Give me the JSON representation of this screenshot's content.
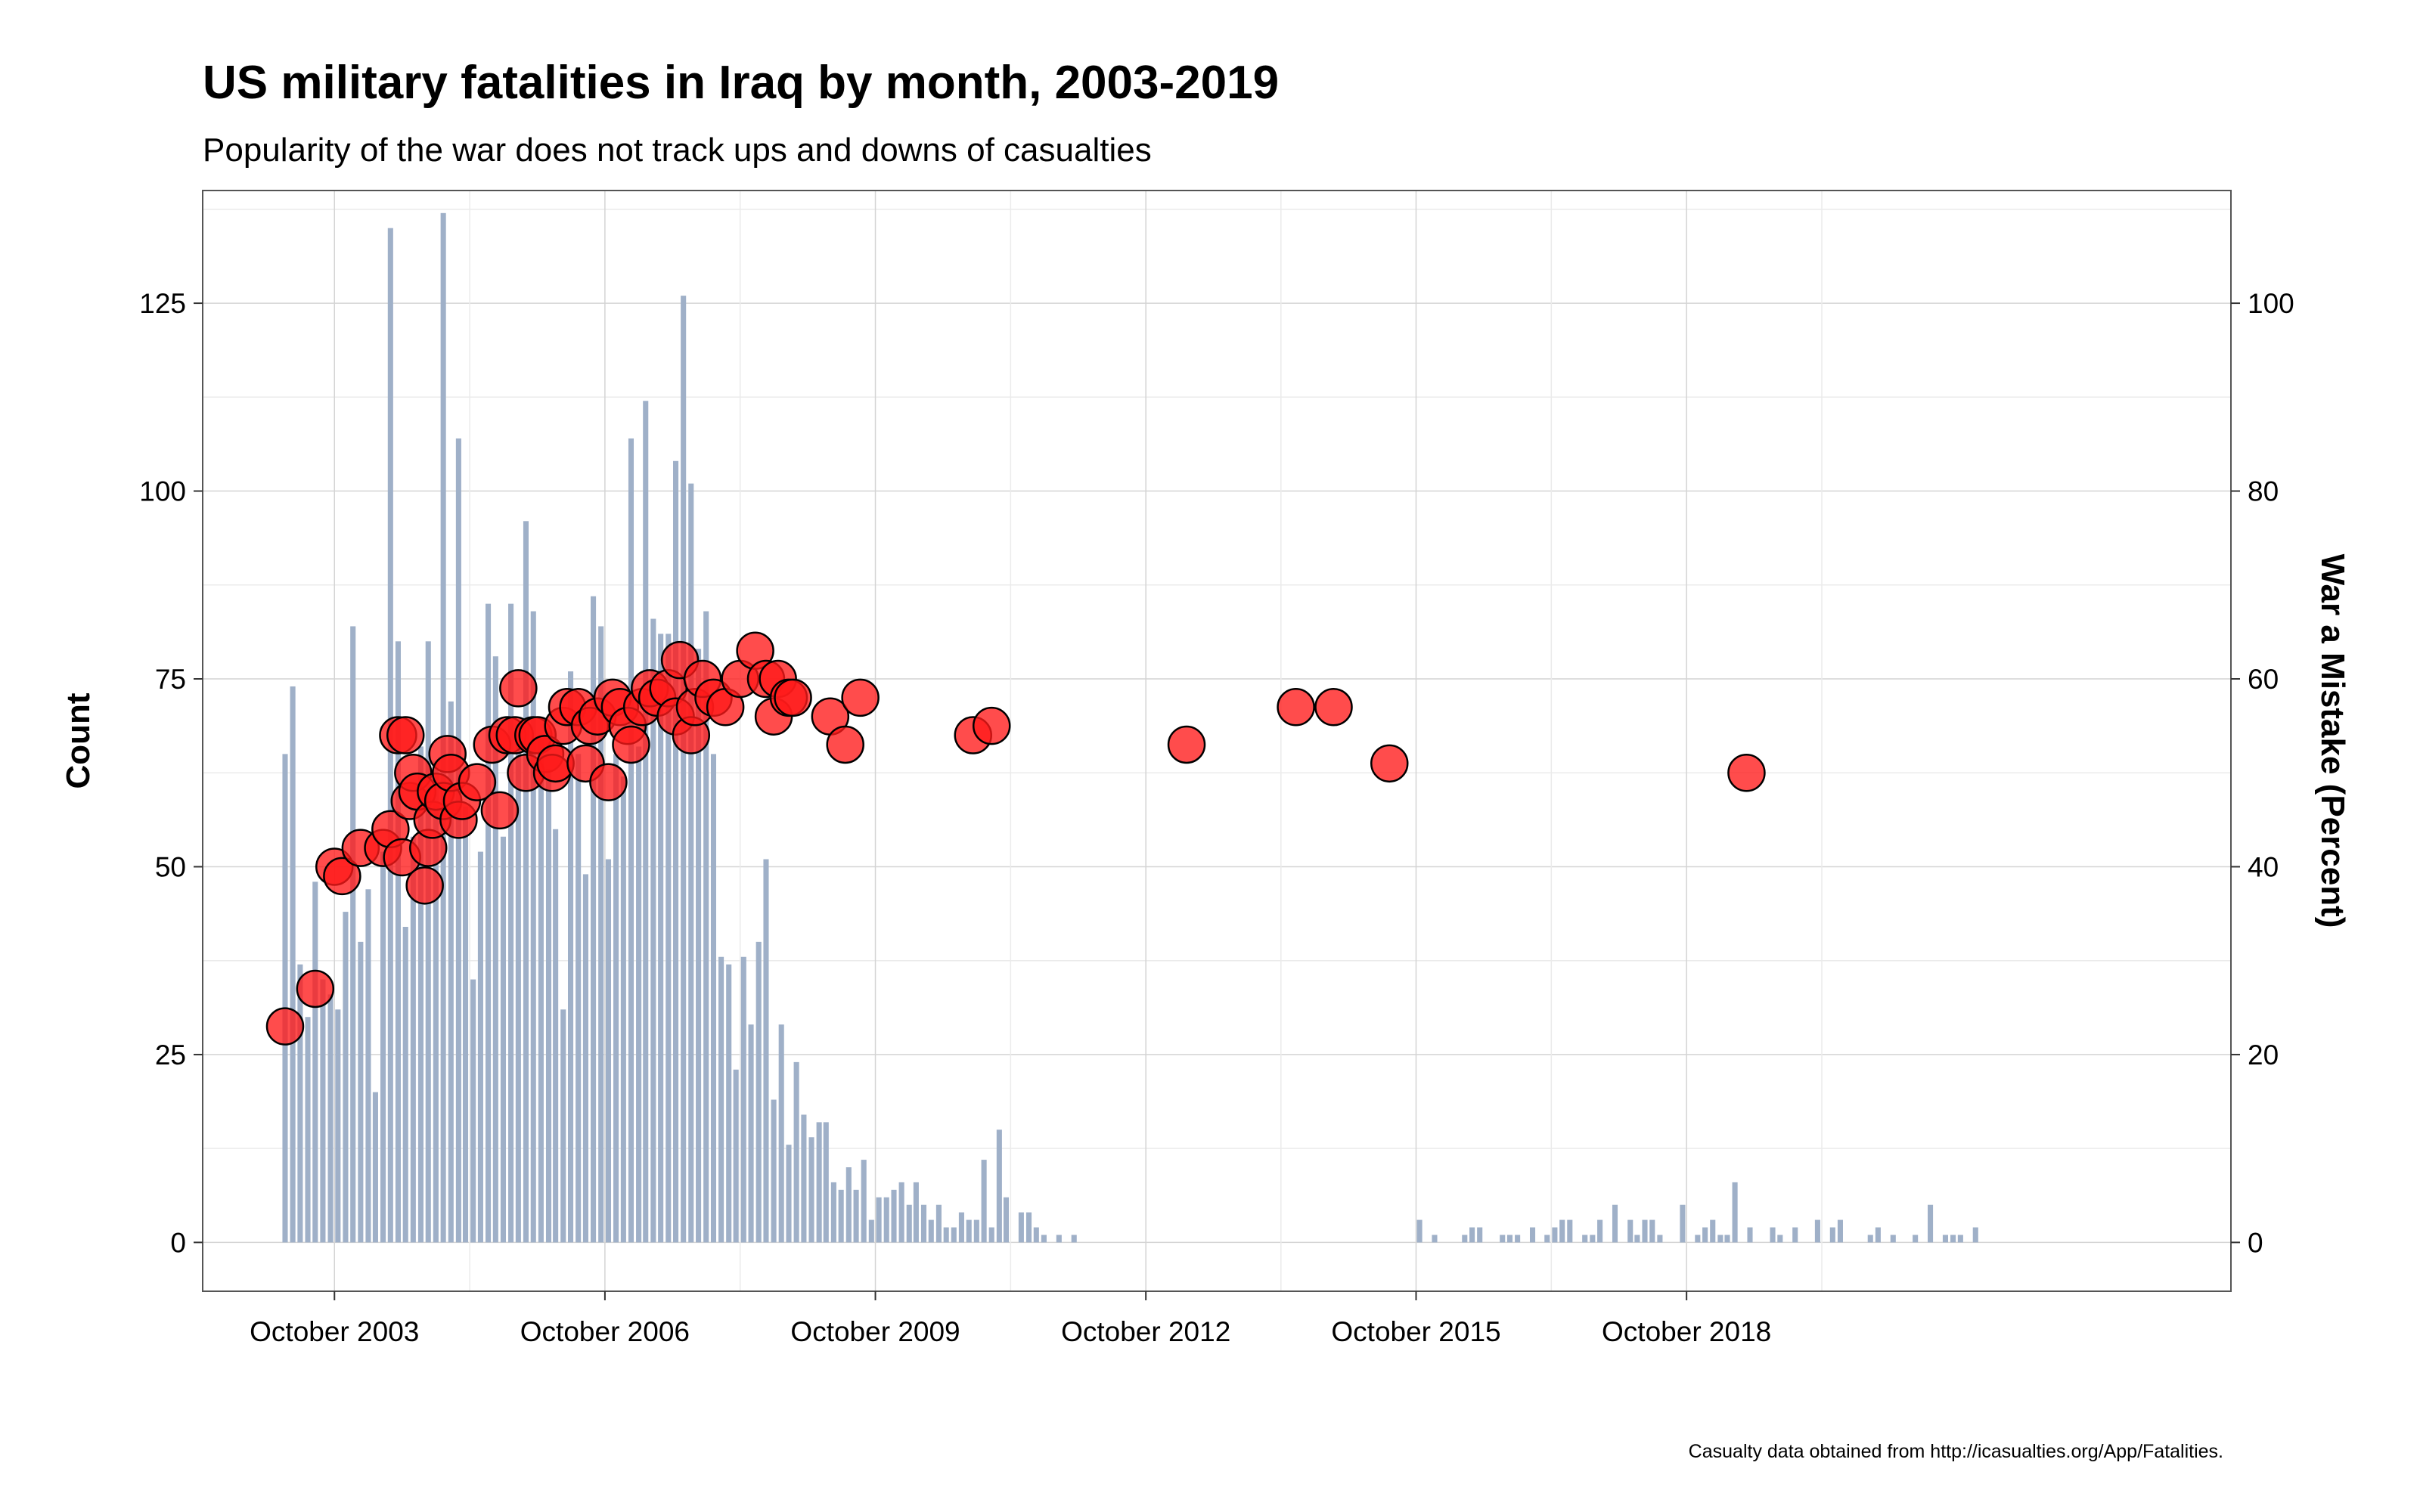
{
  "chart_data": {
    "type": "bar",
    "title": "US military fatalities in Iraq by month, 2003-2019",
    "subtitle": "Popularity of the war does not track ups and downs of casualties",
    "caption": "Casualty data obtained from http://icasualties.org/App/Fatalities.",
    "xlabel": "",
    "ylabel": "Count",
    "y2label": "War a Mistake (Percent)",
    "ylim": [
      -6.5,
      140
    ],
    "y2lim": [
      -5.2,
      112
    ],
    "yticks": [
      0,
      25,
      50,
      75,
      100,
      125
    ],
    "y2ticks": [
      0,
      20,
      40,
      60,
      80,
      100
    ],
    "xlim": [
      "2002-04-15",
      "2024-10-15"
    ],
    "xticks": [
      {
        "date": "2003-10-01",
        "label": "October 2003"
      },
      {
        "date": "2006-10-01",
        "label": "October 2006"
      },
      {
        "date": "2009-10-01",
        "label": "October 2009"
      },
      {
        "date": "2012-10-01",
        "label": "October 2012"
      },
      {
        "date": "2015-10-01",
        "label": "October 2015"
      },
      {
        "date": "2018-10-01",
        "label": "October 2018"
      }
    ],
    "grid": true,
    "legend": "none",
    "colors": {
      "bar": "#9fb0c8",
      "point": "#ff1a1a",
      "point_edge": "#000000",
      "grid": "#d4d4d4",
      "panel_border": "#555555"
    },
    "series": [
      {
        "type": "bar",
        "axis": "left",
        "start_month": "2003-03",
        "values": [
          65,
          74,
          37,
          30,
          48,
          35,
          33,
          31,
          44,
          82,
          40,
          47,
          20,
          52,
          135,
          80,
          42,
          54,
          66,
          80,
          64,
          137,
          72,
          107,
          58,
          35,
          52,
          85,
          78,
          54,
          85,
          67,
          96,
          84,
          67,
          63,
          55,
          31,
          76,
          65,
          49,
          86,
          82,
          51,
          65,
          62,
          107,
          66,
          112,
          83,
          81,
          81,
          104,
          126,
          101,
          79,
          84,
          65,
          38,
          37,
          23,
          38,
          29,
          40,
          51,
          19,
          29,
          13,
          24,
          17,
          14,
          16,
          16,
          8,
          7,
          10,
          7,
          11,
          3,
          6,
          6,
          7,
          8,
          5,
          8,
          5,
          3,
          5,
          2,
          2,
          4,
          3,
          3,
          11,
          2,
          15,
          6,
          0,
          4,
          4,
          2,
          1,
          0,
          1,
          0,
          1,
          0,
          0,
          0,
          0,
          0,
          0,
          0,
          0,
          0,
          0,
          0,
          0,
          0,
          0,
          0,
          0,
          0,
          0,
          0,
          0,
          0,
          0,
          0,
          0,
          0,
          0,
          0,
          0,
          0,
          0,
          0,
          0,
          0,
          0,
          0,
          0,
          0,
          0,
          0,
          0,
          0,
          0,
          0,
          0,
          0,
          3,
          0,
          1,
          0,
          0,
          0,
          1,
          2,
          2,
          0,
          0,
          1,
          1,
          1,
          0,
          2,
          0,
          1,
          2,
          3,
          3,
          0,
          1,
          1,
          3,
          0,
          5,
          0,
          3,
          1,
          3,
          3,
          1,
          0,
          0,
          5,
          0,
          1,
          2,
          3,
          1,
          1,
          8,
          0,
          2,
          0,
          0,
          2,
          1,
          0,
          2,
          0,
          0,
          3,
          0,
          2,
          3,
          0,
          0,
          0,
          1,
          2,
          0,
          1,
          0,
          0,
          1,
          0,
          5,
          0,
          1,
          1,
          1,
          0,
          2
        ]
      },
      {
        "type": "scatter",
        "axis": "right",
        "name": "War a Mistake (Percent)",
        "points": [
          {
            "x": "2003-03-15",
            "y": 23
          },
          {
            "x": "2003-07-15",
            "y": 27
          },
          {
            "x": "2003-10-01",
            "y": 40
          },
          {
            "x": "2003-11-01",
            "y": 39
          },
          {
            "x": "2004-01-15",
            "y": 42
          },
          {
            "x": "2004-04-15",
            "y": 42
          },
          {
            "x": "2004-05-15",
            "y": 44
          },
          {
            "x": "2004-06-15",
            "y": 54
          },
          {
            "x": "2004-07-01",
            "y": 41
          },
          {
            "x": "2004-07-15",
            "y": 54
          },
          {
            "x": "2004-08-01",
            "y": 47
          },
          {
            "x": "2004-08-15",
            "y": 50
          },
          {
            "x": "2004-09-01",
            "y": 48
          },
          {
            "x": "2004-10-01",
            "y": 38
          },
          {
            "x": "2004-10-15",
            "y": 42
          },
          {
            "x": "2004-11-01",
            "y": 45
          },
          {
            "x": "2004-11-15",
            "y": 48
          },
          {
            "x": "2004-12-15",
            "y": 47
          },
          {
            "x": "2005-01-01",
            "y": 52
          },
          {
            "x": "2005-01-15",
            "y": 50
          },
          {
            "x": "2005-02-15",
            "y": 45
          },
          {
            "x": "2005-03-01",
            "y": 47
          },
          {
            "x": "2005-05-01",
            "y": 49
          },
          {
            "x": "2005-07-01",
            "y": 53
          },
          {
            "x": "2005-08-01",
            "y": 46
          },
          {
            "x": "2005-09-01",
            "y": 54
          },
          {
            "x": "2005-10-01",
            "y": 54
          },
          {
            "x": "2005-10-15",
            "y": 59
          },
          {
            "x": "2005-11-15",
            "y": 50
          },
          {
            "x": "2005-12-15",
            "y": 54
          },
          {
            "x": "2006-01-01",
            "y": 54
          },
          {
            "x": "2006-02-01",
            "y": 52
          },
          {
            "x": "2006-03-01",
            "y": 50
          },
          {
            "x": "2006-03-15",
            "y": 51
          },
          {
            "x": "2006-04-15",
            "y": 55
          },
          {
            "x": "2006-05-01",
            "y": 57
          },
          {
            "x": "2006-06-15",
            "y": 57
          },
          {
            "x": "2006-07-15",
            "y": 51
          },
          {
            "x": "2006-08-01",
            "y": 55
          },
          {
            "x": "2006-09-01",
            "y": 56
          },
          {
            "x": "2006-10-15",
            "y": 49
          },
          {
            "x": "2006-11-01",
            "y": 58
          },
          {
            "x": "2006-12-01",
            "y": 57
          },
          {
            "x": "2007-01-01",
            "y": 55
          },
          {
            "x": "2007-01-15",
            "y": 53
          },
          {
            "x": "2007-03-01",
            "y": 57
          },
          {
            "x": "2007-04-01",
            "y": 59
          },
          {
            "x": "2007-05-01",
            "y": 58
          },
          {
            "x": "2007-06-15",
            "y": 59
          },
          {
            "x": "2007-07-15",
            "y": 56
          },
          {
            "x": "2007-08-01",
            "y": 62
          },
          {
            "x": "2007-09-15",
            "y": 54
          },
          {
            "x": "2007-10-01",
            "y": 57
          },
          {
            "x": "2007-11-01",
            "y": 60
          },
          {
            "x": "2007-12-15",
            "y": 58
          },
          {
            "x": "2008-02-01",
            "y": 57
          },
          {
            "x": "2008-04-01",
            "y": 60
          },
          {
            "x": "2008-06-01",
            "y": 63
          },
          {
            "x": "2008-07-15",
            "y": 60
          },
          {
            "x": "2008-08-15",
            "y": 56
          },
          {
            "x": "2008-09-01",
            "y": 60
          },
          {
            "x": "2008-10-15",
            "y": 58
          },
          {
            "x": "2008-11-01",
            "y": 58
          },
          {
            "x": "2009-04-01",
            "y": 56
          },
          {
            "x": "2009-06-01",
            "y": 53
          },
          {
            "x": "2009-08-01",
            "y": 58
          },
          {
            "x": "2010-11-01",
            "y": 54
          },
          {
            "x": "2011-01-15",
            "y": 55
          },
          {
            "x": "2013-03-15",
            "y": 53
          },
          {
            "x": "2014-06-01",
            "y": 57
          },
          {
            "x": "2014-11-01",
            "y": 57
          },
          {
            "x": "2015-06-15",
            "y": 51
          },
          {
            "x": "2019-06-01",
            "y": 50
          }
        ]
      }
    ]
  }
}
